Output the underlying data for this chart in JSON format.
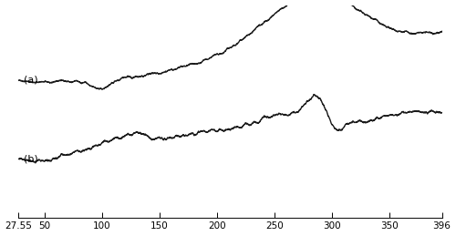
{
  "x_min": 27.55,
  "x_max": 396,
  "x_ticks": [
    27.55,
    50,
    100,
    150,
    200,
    250,
    300,
    350,
    396
  ],
  "x_tick_labels": [
    "27.55",
    "50",
    "100",
    "150",
    "200",
    "250",
    "300",
    "350",
    "396"
  ],
  "label_a": "(a)",
  "label_b": "(b)",
  "background_color": "#ffffff",
  "line_color": "#1a1a1a",
  "line_width": 1.0,
  "ylim_min": -3.0,
  "ylim_max": 4.5,
  "curve_a_baseline": 1.8,
  "curve_b_baseline": -0.8
}
